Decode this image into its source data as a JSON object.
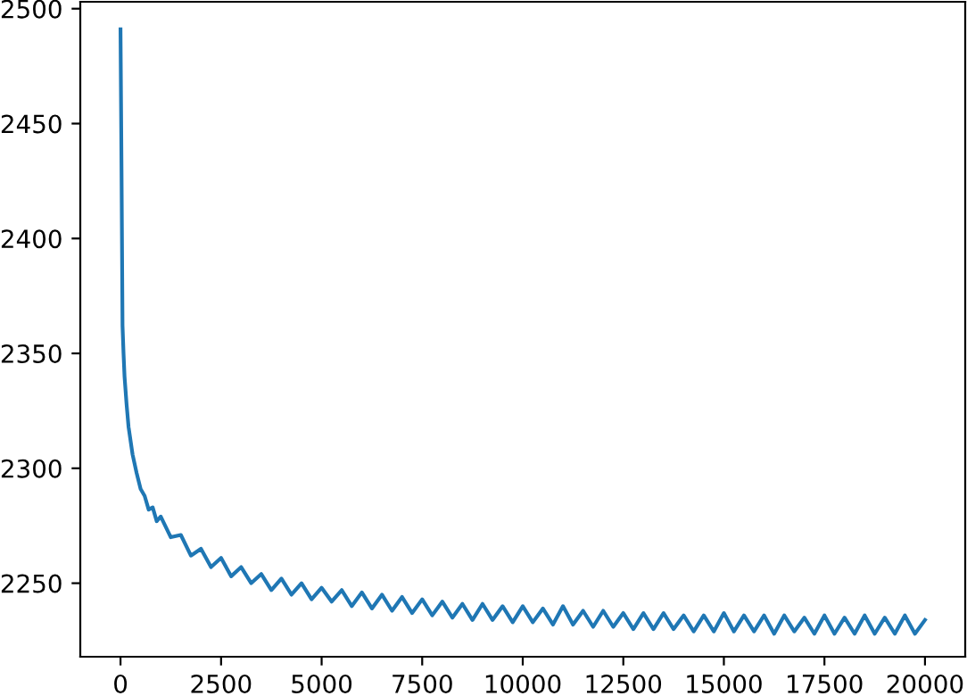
{
  "chart_data": {
    "type": "line",
    "x": [
      0,
      25,
      50,
      75,
      100,
      150,
      200,
      300,
      400,
      500,
      600,
      700,
      800,
      900,
      1000,
      1250,
      1500,
      1750,
      2000,
      2250,
      2500,
      2750,
      3000,
      3250,
      3500,
      3750,
      4000,
      4250,
      4500,
      4750,
      5000,
      5250,
      5500,
      5750,
      6000,
      6250,
      6500,
      6750,
      7000,
      7250,
      7500,
      7750,
      8000,
      8250,
      8500,
      8750,
      9000,
      9250,
      9500,
      9750,
      10000,
      10250,
      10500,
      10750,
      11000,
      11250,
      11500,
      11750,
      12000,
      12250,
      12500,
      12750,
      13000,
      13250,
      13500,
      13750,
      14000,
      14250,
      14500,
      14750,
      15000,
      15250,
      15500,
      15750,
      16000,
      16250,
      16500,
      16750,
      17000,
      17250,
      17500,
      17750,
      18000,
      18250,
      18500,
      18750,
      19000,
      19250,
      19500,
      19750,
      20000
    ],
    "series": [
      {
        "color": "#1f77b4",
        "values": [
          2491,
          2430,
          2362,
          2350,
          2340,
          2328,
          2318,
          2306,
          2298,
          2291,
          2288,
          2282,
          2283,
          2277,
          2279,
          2270,
          2271,
          2262,
          2265,
          2257,
          2261,
          2253,
          2257,
          2250,
          2254,
          2247,
          2252,
          2245,
          2250,
          2243,
          2248,
          2242,
          2247,
          2240,
          2246,
          2239,
          2245,
          2238,
          2244,
          2237,
          2243,
          2236,
          2242,
          2235,
          2241,
          2234,
          2241,
          2234,
          2240,
          2233,
          2240,
          2233,
          2239,
          2232,
          2240,
          2232,
          2238,
          2231,
          2238,
          2231,
          2237,
          2230,
          2237,
          2230,
          2237,
          2230,
          2236,
          2229,
          2236,
          2229,
          2237,
          2229,
          2236,
          2229,
          2236,
          2228,
          2236,
          2229,
          2235,
          2228,
          2236,
          2228,
          2235,
          2228,
          2236,
          2228,
          2235,
          2228,
          2236,
          2228,
          2234
        ]
      }
    ],
    "xlim": [
      -1000,
      21000
    ],
    "xticks": [
      0,
      2500,
      5000,
      7500,
      10000,
      12500,
      15000,
      17500,
      20000
    ],
    "ylim": [
      2218,
      2503
    ],
    "yticks": [
      2250,
      2300,
      2350,
      2400,
      2450,
      2500
    ]
  }
}
